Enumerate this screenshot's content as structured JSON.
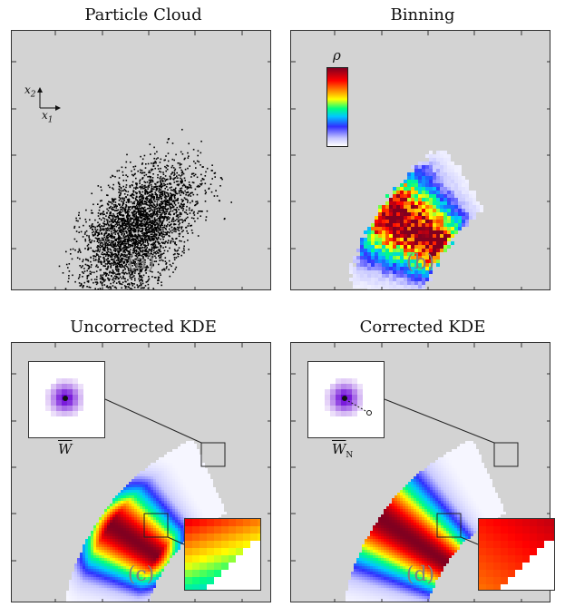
{
  "panels": [
    {
      "title": "Particle Cloud",
      "label": "(a)"
    },
    {
      "title": "Binning",
      "label": "(b)"
    },
    {
      "title": "Uncorrected KDE",
      "label": "(c)"
    },
    {
      "title": "Corrected KDE",
      "label": "(d)"
    }
  ],
  "axes": {
    "x_label": "x",
    "x_sub": "1",
    "y_label": "x",
    "y_sub": "2"
  },
  "colorbar": {
    "label": "ρ"
  },
  "insets": {
    "kernel_c": "W",
    "kernel_d": "W",
    "kernel_d_sub": "N"
  },
  "colors": {
    "panel_bg": "#d3d3d3",
    "colormap": [
      "#ffffff",
      "#c8c8ff",
      "#3030ff",
      "#00c8ff",
      "#00ff80",
      "#ffff00",
      "#ff8000",
      "#ff0000",
      "#800020"
    ],
    "kernel": "#e000e0"
  }
}
